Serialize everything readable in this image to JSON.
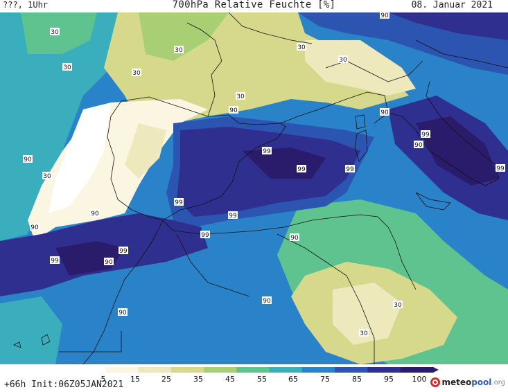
{
  "header": {
    "left": "???, 1Uhr",
    "title": "700hPa Relative Feuchte [%]",
    "date": "08. Januar 2021"
  },
  "footer": {
    "init": "+66h Init:06Z05JAN2021",
    "logo_main": "meteo",
    "logo_pool": "pool",
    "logo_org": ".org"
  },
  "colorbar": {
    "ticks": [
      "5",
      "15",
      "25",
      "35",
      "45",
      "55",
      "65",
      "75",
      "85",
      "95",
      "100"
    ],
    "colors": [
      "#ffffff",
      "#fbf6e2",
      "#eee9bc",
      "#d6d98c",
      "#a9cf74",
      "#5fc38f",
      "#3aaebc",
      "#2a82c8",
      "#2b55b1",
      "#2f2f8f",
      "#2b1b6b"
    ]
  },
  "contour_labels": {
    "l1": "30",
    "l2": "30",
    "l3": "30",
    "l4": "30",
    "l5": "30",
    "l6": "30",
    "l7": "30",
    "l8": "30",
    "l9": "90",
    "l10": "90",
    "l11": "90",
    "l12": "90",
    "l13": "90",
    "l14": "90",
    "l15": "99",
    "l16": "99",
    "l17": "99",
    "l18": "99",
    "l19": "99",
    "l20": "99",
    "l21": "99",
    "l22": "99",
    "l23": "90",
    "l24": "90",
    "l25": "90",
    "l26": "99",
    "l27": "90",
    "l28": "30",
    "l29": "30",
    "l30": "90",
    "l31": "99"
  }
}
